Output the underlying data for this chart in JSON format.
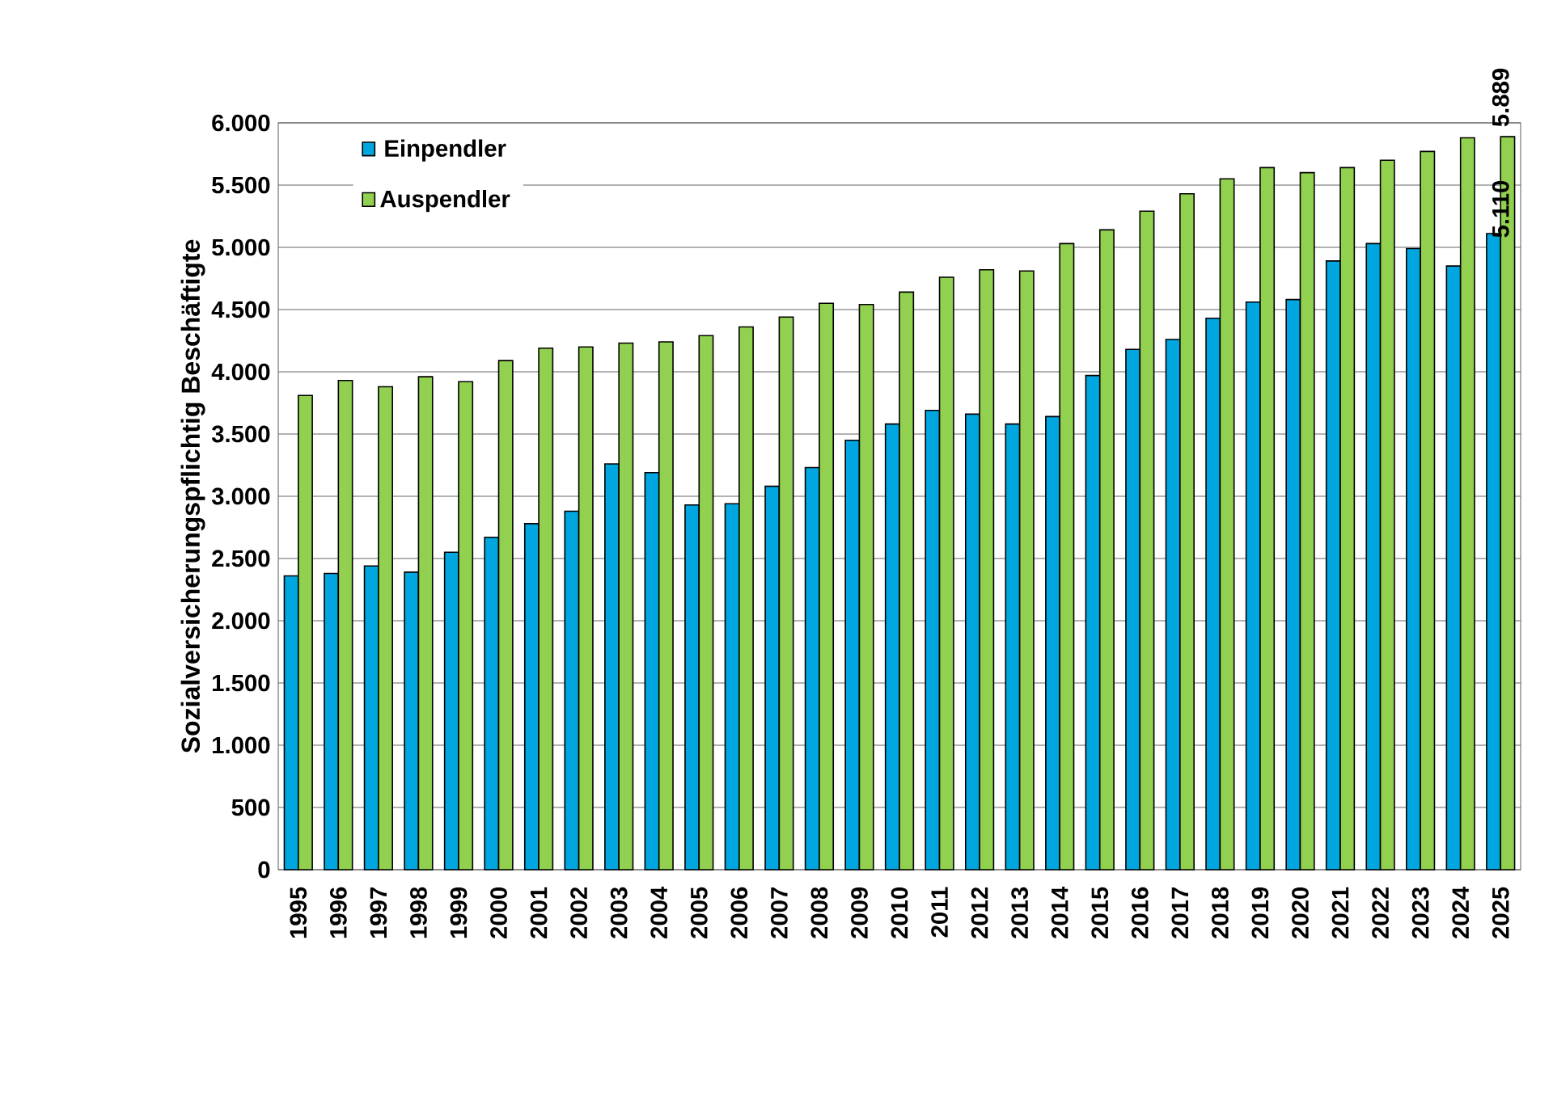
{
  "chart_data": {
    "type": "bar",
    "ylabel": "Sozialversicherungspflichtig Beschäftigte",
    "categories": [
      "1995",
      "1996",
      "1997",
      "1998",
      "1999",
      "2000",
      "2001",
      "2002",
      "2003",
      "2004",
      "2005",
      "2006",
      "2007",
      "2008",
      "2009",
      "2010",
      "2011",
      "2012",
      "2013",
      "2014",
      "2015",
      "2016",
      "2017",
      "2018",
      "2019",
      "2020",
      "2021",
      "2022",
      "2023",
      "2024",
      "2025"
    ],
    "series": [
      {
        "name": "Einpendler",
        "color": "#00a6e0",
        "values": [
          2360,
          2380,
          2440,
          2390,
          2550,
          2670,
          2780,
          2880,
          3260,
          3190,
          2930,
          2940,
          3080,
          3230,
          3450,
          3580,
          3690,
          3660,
          3580,
          3640,
          3970,
          4180,
          4260,
          4430,
          4560,
          4580,
          4890,
          5030,
          4990,
          4850,
          5110
        ],
        "value_labels": [
          null,
          null,
          null,
          null,
          null,
          null,
          null,
          null,
          null,
          null,
          null,
          null,
          null,
          null,
          null,
          null,
          null,
          null,
          null,
          null,
          null,
          null,
          null,
          null,
          null,
          null,
          null,
          null,
          null,
          null,
          "5.110"
        ]
      },
      {
        "name": "Auspendler",
        "color": "#92d050",
        "values": [
          3810,
          3930,
          3880,
          3960,
          3920,
          4090,
          4190,
          4200,
          4230,
          4240,
          4290,
          4360,
          4440,
          4550,
          4540,
          4640,
          4760,
          4820,
          4810,
          5030,
          5140,
          5290,
          5430,
          5550,
          5640,
          5600,
          5640,
          5700,
          5770,
          5880,
          5889
        ],
        "value_labels": [
          null,
          null,
          null,
          null,
          null,
          null,
          null,
          null,
          null,
          null,
          null,
          null,
          null,
          null,
          null,
          null,
          null,
          null,
          null,
          null,
          null,
          null,
          null,
          null,
          null,
          null,
          null,
          null,
          null,
          null,
          "5.889"
        ]
      }
    ],
    "ylim": [
      0,
      6000
    ],
    "yticks": [
      0,
      500,
      {
        "value": 1000,
        "label": "1.000"
      },
      {
        "value": 1500,
        "label": "1.500"
      },
      {
        "value": 2000,
        "label": "2.000"
      },
      {
        "value": 2500,
        "label": "2.500"
      },
      {
        "value": 3000,
        "label": "3.000"
      },
      {
        "value": 3500,
        "label": "3.500"
      },
      {
        "value": 4000,
        "label": "4.000"
      },
      {
        "value": 4500,
        "label": "4.500"
      },
      {
        "value": 5000,
        "label": "5.000"
      },
      {
        "value": 5500,
        "label": "5.500"
      },
      {
        "value": 6000,
        "label": "6.000"
      }
    ],
    "grid": "y",
    "legend": "top left"
  }
}
